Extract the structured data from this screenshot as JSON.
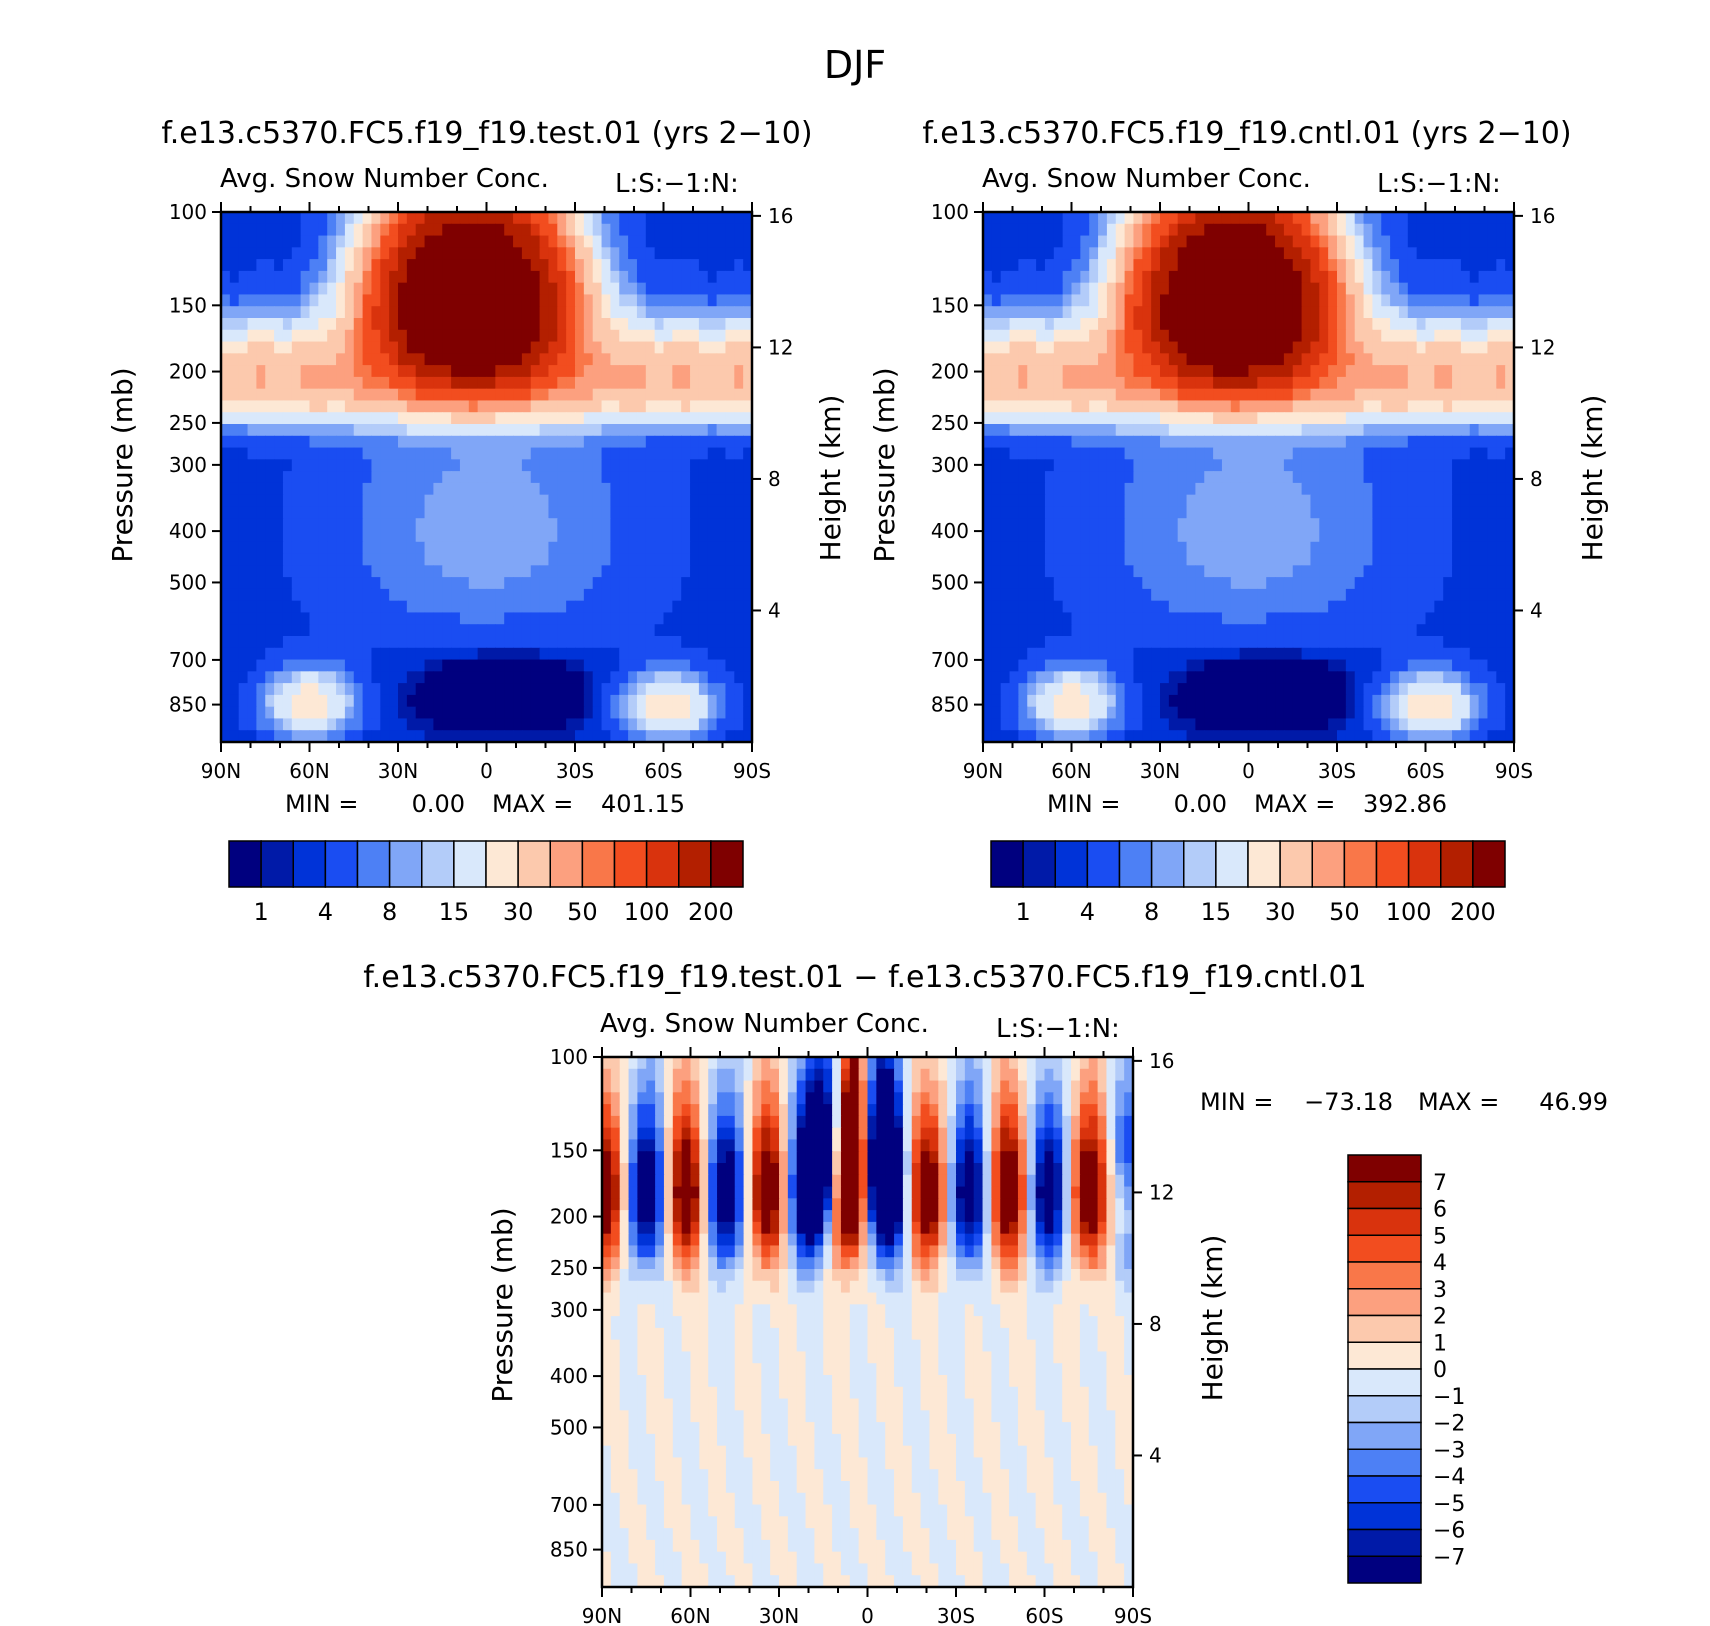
{
  "season": "DJF",
  "colors": {
    "abs_scale": [
      "#00007f",
      "#001aa8",
      "#0033d8",
      "#1a4df2",
      "#4d80f5",
      "#80a6f7",
      "#b3ccf9",
      "#d9e8fb",
      "#fde8d5",
      "#fcc9ad",
      "#fca07f",
      "#f97749",
      "#f24d1f",
      "#d9330d",
      "#b31f00",
      "#7f0000"
    ],
    "diff_scale": [
      "#00007f",
      "#001aa8",
      "#0033d8",
      "#1a4df2",
      "#4d80f5",
      "#80a6f7",
      "#b3ccf9",
      "#d9e8fb",
      "#fde8d5",
      "#fcc9ad",
      "#fca07f",
      "#f97749",
      "#f24d1f",
      "#d9330d",
      "#b31f00",
      "#7f0000"
    ]
  },
  "chart_data": [
    {
      "type": "heatmap",
      "id": "test",
      "title": "f.e13.c5370.FC5.f19_f19.test.01 (yrs 2−10)",
      "subtitle": "Avg. Snow Number Conc.",
      "units_label": "L:S:−1:N:",
      "xlabel": "",
      "ylabel": "Pressure (mb)",
      "ylabel_right": "Height (km)",
      "x_ticks": [
        "90N",
        "60N",
        "30N",
        "0",
        "30S",
        "60S",
        "90S"
      ],
      "x_range": [
        90,
        -90
      ],
      "y_ticks": [
        100,
        150,
        200,
        250,
        300,
        400,
        500,
        700,
        850
      ],
      "y_range": [
        100,
        1000
      ],
      "height_ticks": [
        16,
        12,
        8,
        4
      ],
      "stats": {
        "min_label": "MIN =",
        "min_value": "0.00",
        "max_label": "MAX =",
        "max_value": "401.15"
      },
      "colorbar_labels": [
        "1",
        "4",
        "8",
        "15",
        "30",
        "50",
        "100",
        "200"
      ],
      "levels": [
        0.5,
        1,
        2,
        4,
        6,
        8,
        10,
        15,
        20,
        30,
        40,
        50,
        70,
        100,
        150,
        200,
        300
      ],
      "features": [
        {
          "region": "tropical upper maximum",
          "lat": [
            30,
            -30
          ],
          "p": [
            100,
            190
          ],
          "peak": 401.15
        },
        {
          "region": "tropopause band",
          "lat": [
            90,
            -90
          ],
          "p": [
            170,
            250
          ],
          "value": 30
        },
        {
          "region": "tropical mid-troposphere",
          "lat": [
            30,
            -30
          ],
          "p": [
            250,
            650
          ],
          "value": 8
        },
        {
          "region": "tropical lower minimum",
          "lat": [
            20,
            -30
          ],
          "p": [
            620,
            900
          ],
          "value": 0.5
        },
        {
          "region": "midlatitude boundary layer maxima",
          "lat": [
            70,
            -70
          ],
          "p": [
            700,
            900
          ],
          "value": 20
        }
      ]
    },
    {
      "type": "heatmap",
      "id": "cntl",
      "title": "f.e13.c5370.FC5.f19_f19.cntl.01 (yrs 2−10)",
      "subtitle": "Avg. Snow Number Conc.",
      "units_label": "L:S:−1:N:",
      "xlabel": "",
      "ylabel": "Pressure (mb)",
      "ylabel_right": "Height (km)",
      "x_ticks": [
        "90N",
        "60N",
        "30N",
        "0",
        "30S",
        "60S",
        "90S"
      ],
      "x_range": [
        90,
        -90
      ],
      "y_ticks": [
        100,
        150,
        200,
        250,
        300,
        400,
        500,
        700,
        850
      ],
      "y_range": [
        100,
        1000
      ],
      "height_ticks": [
        16,
        12,
        8,
        4
      ],
      "stats": {
        "min_label": "MIN =",
        "min_value": "0.00",
        "max_label": "MAX =",
        "max_value": "392.86"
      },
      "colorbar_labels": [
        "1",
        "4",
        "8",
        "15",
        "30",
        "50",
        "100",
        "200"
      ],
      "levels": [
        0.5,
        1,
        2,
        4,
        6,
        8,
        10,
        15,
        20,
        30,
        40,
        50,
        70,
        100,
        150,
        200,
        300
      ],
      "features": [
        {
          "region": "tropical upper maximum",
          "lat": [
            30,
            -30
          ],
          "p": [
            100,
            190
          ],
          "peak": 392.86
        },
        {
          "region": "tropopause band",
          "lat": [
            90,
            -90
          ],
          "p": [
            170,
            250
          ],
          "value": 30
        },
        {
          "region": "tropical mid-troposphere",
          "lat": [
            30,
            -30
          ],
          "p": [
            250,
            650
          ],
          "value": 8
        },
        {
          "region": "tropical lower minimum",
          "lat": [
            20,
            -30
          ],
          "p": [
            620,
            900
          ],
          "value": 0.5
        },
        {
          "region": "midlatitude boundary layer maxima",
          "lat": [
            70,
            -70
          ],
          "p": [
            700,
            900
          ],
          "value": 20
        }
      ]
    },
    {
      "type": "heatmap",
      "id": "diff",
      "title": "f.e13.c5370.FC5.f19_f19.test.01 − f.e13.c5370.FC5.f19_f19.cntl.01",
      "subtitle": "Avg. Snow Number Conc.",
      "units_label": "L:S:−1:N:",
      "xlabel": "",
      "ylabel": "Pressure (mb)",
      "ylabel_right": "Height (km)",
      "x_ticks": [
        "90N",
        "60N",
        "30N",
        "0",
        "30S",
        "60S",
        "90S"
      ],
      "x_range": [
        90,
        -90
      ],
      "y_ticks": [
        100,
        150,
        200,
        250,
        300,
        400,
        500,
        700,
        850
      ],
      "y_range": [
        100,
        1000
      ],
      "height_ticks": [
        16,
        12,
        8,
        4
      ],
      "stats": {
        "min_label": "MIN =",
        "min_value": "−73.18",
        "max_label": "MAX =",
        "max_value": "46.99"
      },
      "colorbar_labels": [
        "7",
        "6",
        "5",
        "4",
        "3",
        "2",
        "1",
        "0",
        "−1",
        "−2",
        "−3",
        "−4",
        "−5",
        "−6",
        "−7"
      ],
      "levels": [
        -7,
        -6,
        -5,
        -4,
        -3,
        -2,
        -1,
        0,
        1,
        2,
        3,
        4,
        5,
        6,
        7
      ],
      "features": [
        {
          "region": "upper troposphere alternating dipoles",
          "lat": [
            90,
            -90
          ],
          "p": [
            100,
            260
          ],
          "range": [
            -73.18,
            46.99
          ]
        },
        {
          "region": "tropical upper negative bands",
          "lat": [
            20,
            -20
          ],
          "p": [
            100,
            200
          ],
          "value": -7
        },
        {
          "region": "lower troposphere weak differences",
          "lat": [
            90,
            -90
          ],
          "p": [
            300,
            1000
          ],
          "range": [
            -1,
            1
          ]
        }
      ]
    }
  ]
}
